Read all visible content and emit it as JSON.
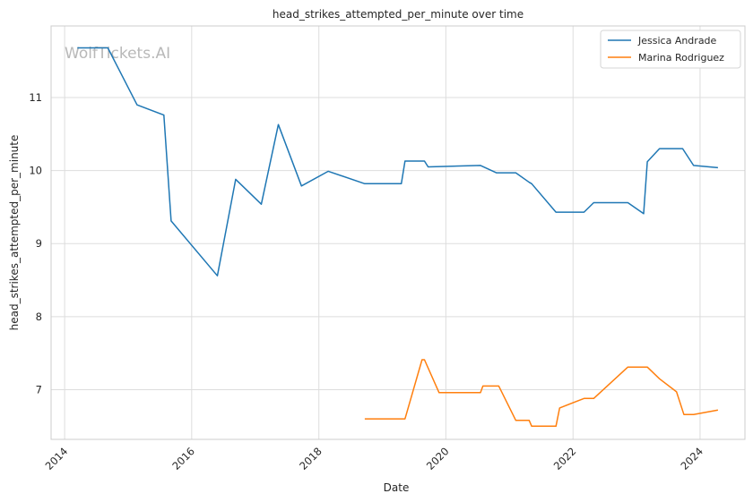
{
  "chart_data": {
    "type": "line",
    "title": "head_strikes_attempted_per_minute over time",
    "xlabel": "Date",
    "ylabel": "head_strikes_attempted_per_minute",
    "watermark": "WolfTickets.AI",
    "x_ticks": [
      "2014",
      "2016",
      "2018",
      "2020",
      "2022",
      "2024"
    ],
    "y_ticks": [
      "7",
      "8",
      "9",
      "10",
      "11"
    ],
    "xlim": [
      "2013-10-15",
      "2024-09-15"
    ],
    "ylim": [
      6.32,
      11.98
    ],
    "grid": true,
    "legend_position": "top-right",
    "series": [
      {
        "name": "Jessica Andrade",
        "color": "#1f77b4",
        "points": [
          [
            "2014-03-15",
            11.68
          ],
          [
            "2014-09-06",
            11.68
          ],
          [
            "2015-02-21",
            10.9
          ],
          [
            "2015-07-25",
            10.76
          ],
          [
            "2015-09-05",
            9.31
          ],
          [
            "2016-05-28",
            8.56
          ],
          [
            "2016-09-10",
            9.88
          ],
          [
            "2017-02-04",
            9.54
          ],
          [
            "2017-05-13",
            10.63
          ],
          [
            "2017-09-23",
            9.79
          ],
          [
            "2018-02-24",
            9.99
          ],
          [
            "2018-09-22",
            9.82
          ],
          [
            "2019-04-20",
            9.82
          ],
          [
            "2019-05-11",
            10.13
          ],
          [
            "2019-08-31",
            10.13
          ],
          [
            "2019-09-21",
            10.05
          ],
          [
            "2020-07-18",
            10.07
          ],
          [
            "2020-10-17",
            9.97
          ],
          [
            "2021-02-06",
            9.97
          ],
          [
            "2021-04-24",
            9.84
          ],
          [
            "2021-05-08",
            9.82
          ],
          [
            "2021-09-25",
            9.43
          ],
          [
            "2022-03-05",
            9.43
          ],
          [
            "2022-04-30",
            9.56
          ],
          [
            "2022-11-12",
            9.56
          ],
          [
            "2023-02-11",
            9.41
          ],
          [
            "2023-03-04",
            10.12
          ],
          [
            "2023-05-13",
            10.3
          ],
          [
            "2023-09-23",
            10.3
          ],
          [
            "2023-11-25",
            10.07
          ],
          [
            "2024-04-13",
            10.04
          ]
        ]
      },
      {
        "name": "Marina Rodriguez",
        "color": "#ff7f0e",
        "points": [
          [
            "2018-09-22",
            6.6
          ],
          [
            "2019-05-11",
            6.6
          ],
          [
            "2019-08-17",
            7.41
          ],
          [
            "2019-08-31",
            7.41
          ],
          [
            "2019-11-23",
            6.96
          ],
          [
            "2020-07-18",
            6.96
          ],
          [
            "2020-08-01",
            7.05
          ],
          [
            "2020-10-31",
            7.05
          ],
          [
            "2021-02-06",
            6.58
          ],
          [
            "2021-04-24",
            6.58
          ],
          [
            "2021-05-08",
            6.5
          ],
          [
            "2021-09-25",
            6.5
          ],
          [
            "2021-10-16",
            6.75
          ],
          [
            "2022-03-05",
            6.88
          ],
          [
            "2022-04-30",
            6.88
          ],
          [
            "2022-11-12",
            7.31
          ],
          [
            "2023-03-04",
            7.31
          ],
          [
            "2023-05-13",
            7.15
          ],
          [
            "2023-08-19",
            6.97
          ],
          [
            "2023-09-30",
            6.66
          ],
          [
            "2023-11-25",
            6.66
          ],
          [
            "2024-04-13",
            6.72
          ]
        ]
      }
    ]
  }
}
